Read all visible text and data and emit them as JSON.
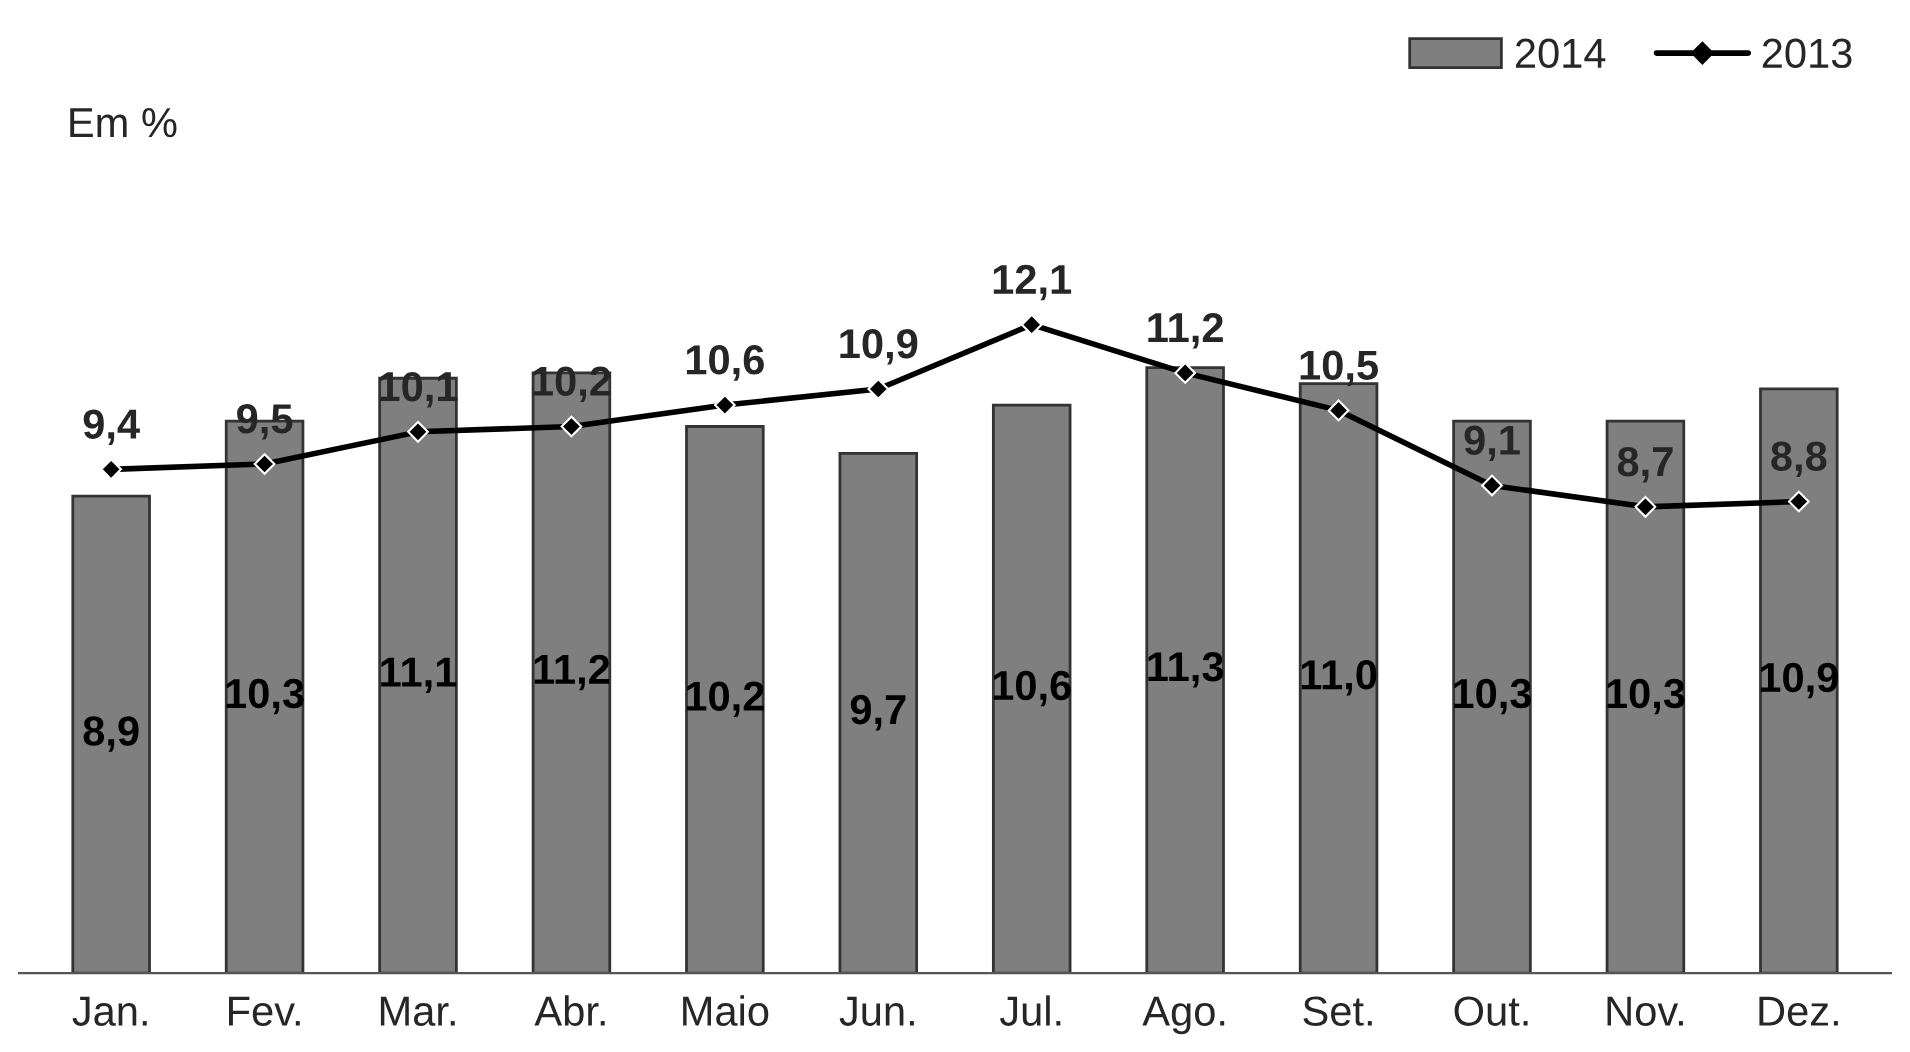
{
  "chart_data": {
    "type": "bar",
    "ylabel": "Em %",
    "categories": [
      "Jan.",
      "Fev.",
      "Mar.",
      "Abr.",
      "Maio",
      "Jun.",
      "Jul.",
      "Ago.",
      "Set.",
      "Out.",
      "Nov.",
      "Dez."
    ],
    "series": [
      {
        "name": "2014",
        "color": "#7f7f7f",
        "values": [
          8.9,
          10.3,
          11.1,
          11.2,
          10.2,
          9.7,
          10.6,
          11.3,
          11.0,
          10.3,
          10.3,
          10.9
        ],
        "value_labels": [
          "8,9",
          "10,3",
          "11,1",
          "11,2",
          "10,2",
          "9,7",
          "10,6",
          "11,3",
          "11,0",
          "10,3",
          "10,3",
          "10,9"
        ]
      },
      {
        "name": "2013",
        "type": "line",
        "color": "#000000",
        "marker": "diamond",
        "line_style": "solid",
        "values": [
          9.4,
          9.5,
          10.1,
          10.2,
          10.6,
          10.9,
          12.1,
          11.2,
          10.5,
          9.1,
          8.7,
          8.8
        ],
        "value_labels": [
          "9,4",
          "9,5",
          "10,1",
          "10,2",
          "10,6",
          "10,9",
          "12,1",
          "11,2",
          "10,5",
          "9,1",
          "8,7",
          "8,8"
        ]
      }
    ],
    "tick_labels": "x",
    "legend": "top right"
  }
}
